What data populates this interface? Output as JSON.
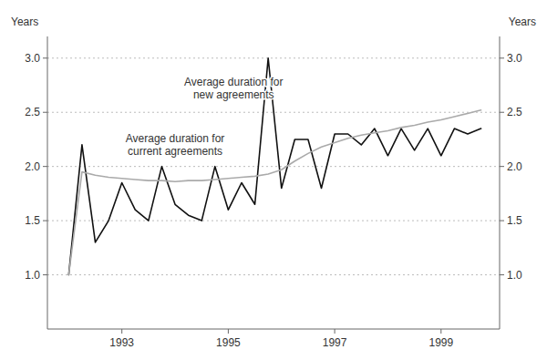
{
  "chart_data": {
    "type": "line",
    "x": [
      1992.0,
      1992.25,
      1992.5,
      1992.75,
      1993.0,
      1993.25,
      1993.5,
      1993.75,
      1994.0,
      1994.25,
      1994.5,
      1994.75,
      1995.0,
      1995.25,
      1995.5,
      1995.75,
      1996.0,
      1996.25,
      1996.5,
      1996.75,
      1997.0,
      1997.25,
      1997.5,
      1997.75,
      1998.0,
      1998.25,
      1998.5,
      1998.75,
      1999.0,
      1999.25,
      1999.5,
      1999.75
    ],
    "series": [
      {
        "color": "#111111",
        "values": [
          1.0,
          2.2,
          1.3,
          1.5,
          1.85,
          1.6,
          1.5,
          2.0,
          1.65,
          1.55,
          1.5,
          2.0,
          1.6,
          1.85,
          1.65,
          3.0,
          1.8,
          2.25,
          2.25,
          1.8,
          2.3,
          2.3,
          2.2,
          2.35,
          2.1,
          2.35,
          2.15,
          2.35,
          2.1,
          2.35,
          2.3,
          2.35
        ]
      },
      {
        "color": "#aaaaaa",
        "values": [
          1.0,
          1.95,
          1.92,
          1.9,
          1.89,
          1.88,
          1.87,
          1.87,
          1.86,
          1.87,
          1.87,
          1.88,
          1.89,
          1.9,
          1.91,
          1.93,
          1.97,
          2.05,
          2.12,
          2.18,
          2.22,
          2.26,
          2.29,
          2.31,
          2.33,
          2.36,
          2.38,
          2.41,
          2.43,
          2.46,
          2.49,
          2.52
        ]
      }
    ],
    "xlim": [
      1991.6,
      2000.1
    ],
    "xticks": [
      1993,
      1995,
      1997,
      1999
    ],
    "ylabel": "Years",
    "ylim": [
      0.5,
      3.2
    ],
    "yticks": [
      {
        "value": 1.0,
        "label": "1.0"
      },
      {
        "value": 1.5,
        "label": "1.5"
      },
      {
        "value": 2.0,
        "label": "2.0"
      },
      {
        "value": 2.5,
        "label": "2.5"
      },
      {
        "value": 3.0,
        "label": "3.0"
      }
    ],
    "y2label": "Years",
    "y2lim": [
      0.5,
      3.2
    ],
    "y2ticks": [
      {
        "value": 1.0,
        "label": "1.0"
      },
      {
        "value": 1.5,
        "label": "1.5"
      },
      {
        "value": 2.0,
        "label": "2.0"
      },
      {
        "value": 2.5,
        "label": "2.5"
      },
      {
        "value": 3.0,
        "label": "3.0"
      }
    ],
    "grid": true,
    "annotations": [
      {
        "text": "Average duration for\nnew agreements",
        "x": 1995.1,
        "y": 2.72
      },
      {
        "text": "Average duration for\ncurrent agreements",
        "x": 1994.0,
        "y": 2.2
      }
    ]
  }
}
